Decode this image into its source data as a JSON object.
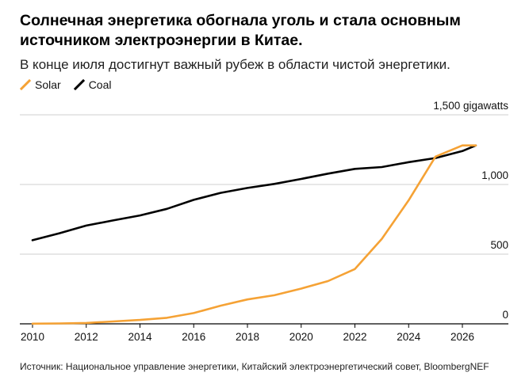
{
  "header": {
    "title": "Солнечная энергетика обогнала уголь и стала основным источником электроэнергии в Китае.",
    "subtitle": "В конце июля достигнут важный рубеж в области чистой энергетики."
  },
  "legend": [
    {
      "name": "Solar",
      "color": "#f5a235"
    },
    {
      "name": "Coal",
      "color": "#000000"
    }
  ],
  "footer": {
    "source": "Источник: Национальное управление энергетики, Китайский электроэнергетический совет, BloombergNEF"
  },
  "chart_data": {
    "type": "line",
    "title": "Солнечная энергетика обогнала уголь и стала основным источником электроэнергии в Китае.",
    "subtitle": "В конце июля достигнут важный рубеж в области чистой энергетики.",
    "xlabel": "",
    "ylabel": "",
    "ylim": [
      0,
      1500
    ],
    "xlim": [
      2010,
      2027
    ],
    "y_ticks": [
      0,
      500,
      1000,
      1500
    ],
    "y_tick_labels": [
      "0",
      "500",
      "1,000",
      "1,500 gigawatts"
    ],
    "x_ticks": [
      2010,
      2012,
      2014,
      2016,
      2018,
      2020,
      2022,
      2024,
      2026
    ],
    "x_tick_labels": [
      "2010",
      "2012",
      "2014",
      "2016",
      "2018",
      "2020",
      "2022",
      "2024",
      "2026"
    ],
    "grid": true,
    "legend_position": "top-left",
    "series": [
      {
        "name": "Solar",
        "color": "#f5a235",
        "x": [
          2010,
          2011,
          2012,
          2013,
          2014,
          2015,
          2016,
          2017,
          2018,
          2019,
          2020,
          2021,
          2022,
          2023,
          2024,
          2025,
          2026,
          2026.5
        ],
        "y": [
          1,
          3,
          6,
          17,
          28,
          43,
          77,
          130,
          175,
          205,
          253,
          307,
          393,
          609,
          887,
          1200,
          1280,
          1280
        ]
      },
      {
        "name": "Coal",
        "color": "#000000",
        "x": [
          2010,
          2011,
          2012,
          2013,
          2014,
          2015,
          2016,
          2017,
          2018,
          2019,
          2020,
          2021,
          2022,
          2023,
          2024,
          2025,
          2026,
          2026.5
        ],
        "y": [
          600,
          650,
          705,
          742,
          778,
          825,
          890,
          940,
          975,
          1004,
          1040,
          1078,
          1112,
          1125,
          1160,
          1190,
          1240,
          1280
        ]
      }
    ]
  }
}
